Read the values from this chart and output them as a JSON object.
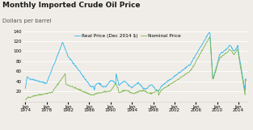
{
  "title": "Monthly Imported Crude Oil Price",
  "subtitle": "Dollars per barrel",
  "legend_nominal": "Nominal Price",
  "legend_real": "Real Price (Dec 2014 $)",
  "color_nominal": "#7ab648",
  "color_real": "#29b5e8",
  "background_color": "#f0ede8",
  "ylim": [
    0,
    140
  ],
  "yticks": [
    20,
    40,
    60,
    80,
    100,
    120,
    140
  ],
  "x_positions": [
    1974,
    1978,
    1982,
    1986,
    1990,
    1994,
    1998,
    2002,
    2006,
    2010,
    2014
  ],
  "xlabel_ticks": [
    "Jan\n1974",
    "Jan\n1978",
    "Jan\n1982",
    "Jan\n1986",
    "Jan\n1990",
    "Jan\n1994",
    "Jan\n1998",
    "Jan\n2002",
    "Jan\n2006",
    "Jan\n2010",
    "Jan\n2014"
  ],
  "xlim": [
    1973.5,
    2015.8
  ],
  "title_fontsize": 6.5,
  "subtitle_fontsize": 5.0,
  "axis_fontsize": 4.0,
  "legend_fontsize": 4.2,
  "grid_color": "#ffffff",
  "spine_color": "#cccccc"
}
